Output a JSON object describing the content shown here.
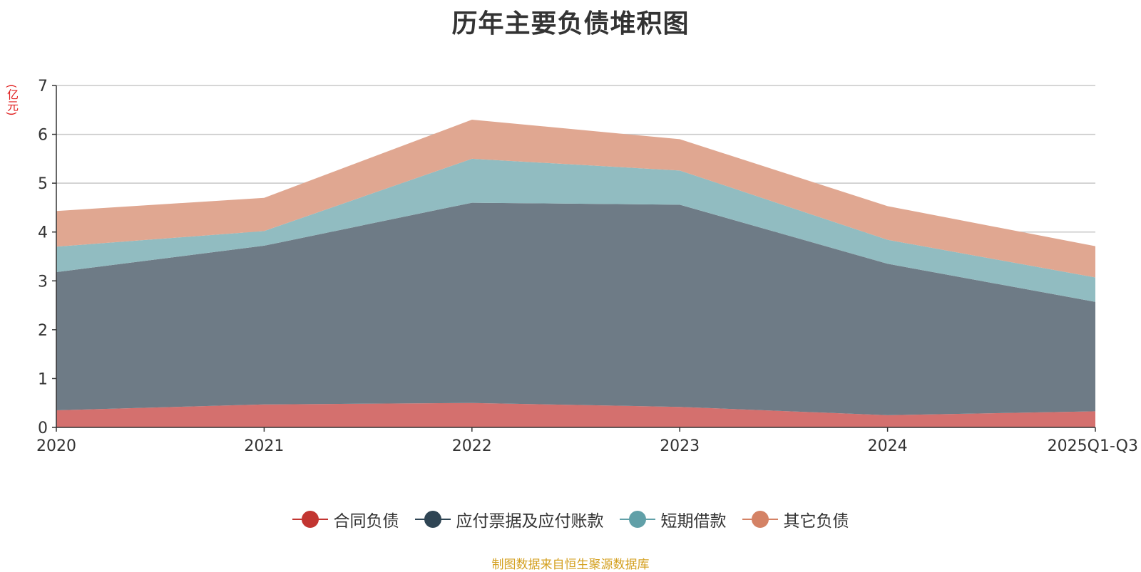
{
  "chart_data": {
    "type": "area",
    "stacked": true,
    "title": "历年主要负债堆积图",
    "ylabel": "(亿元)",
    "xlabel": "",
    "ylim": [
      0,
      7
    ],
    "yticks": [
      "0",
      "1",
      "2",
      "3",
      "4",
      "5",
      "6",
      "7"
    ],
    "categories": [
      "2020",
      "2021",
      "2022",
      "2023",
      "2024",
      "2025Q1-Q3"
    ],
    "grid": true,
    "legend_position": "bottom",
    "series": [
      {
        "name": "合同负债",
        "color": "#c23531",
        "fill": "#d4706e",
        "values": [
          0.35,
          0.47,
          0.5,
          0.42,
          0.25,
          0.33
        ]
      },
      {
        "name": "应付票据及应付账款",
        "color": "#2f4554",
        "fill": "#6e7b86",
        "values": [
          2.83,
          3.25,
          4.1,
          4.14,
          3.1,
          2.24
        ]
      },
      {
        "name": "短期借款",
        "color": "#61a0a8",
        "fill": "#91bcc1",
        "values": [
          0.52,
          0.3,
          0.9,
          0.7,
          0.49,
          0.5
        ]
      },
      {
        "name": "其它负债",
        "color": "#d48265",
        "fill": "#e0a791",
        "values": [
          0.73,
          0.68,
          0.8,
          0.64,
          0.69,
          0.64
        ]
      }
    ]
  },
  "footer": {
    "source": "制图数据来自恒生聚源数据库"
  }
}
